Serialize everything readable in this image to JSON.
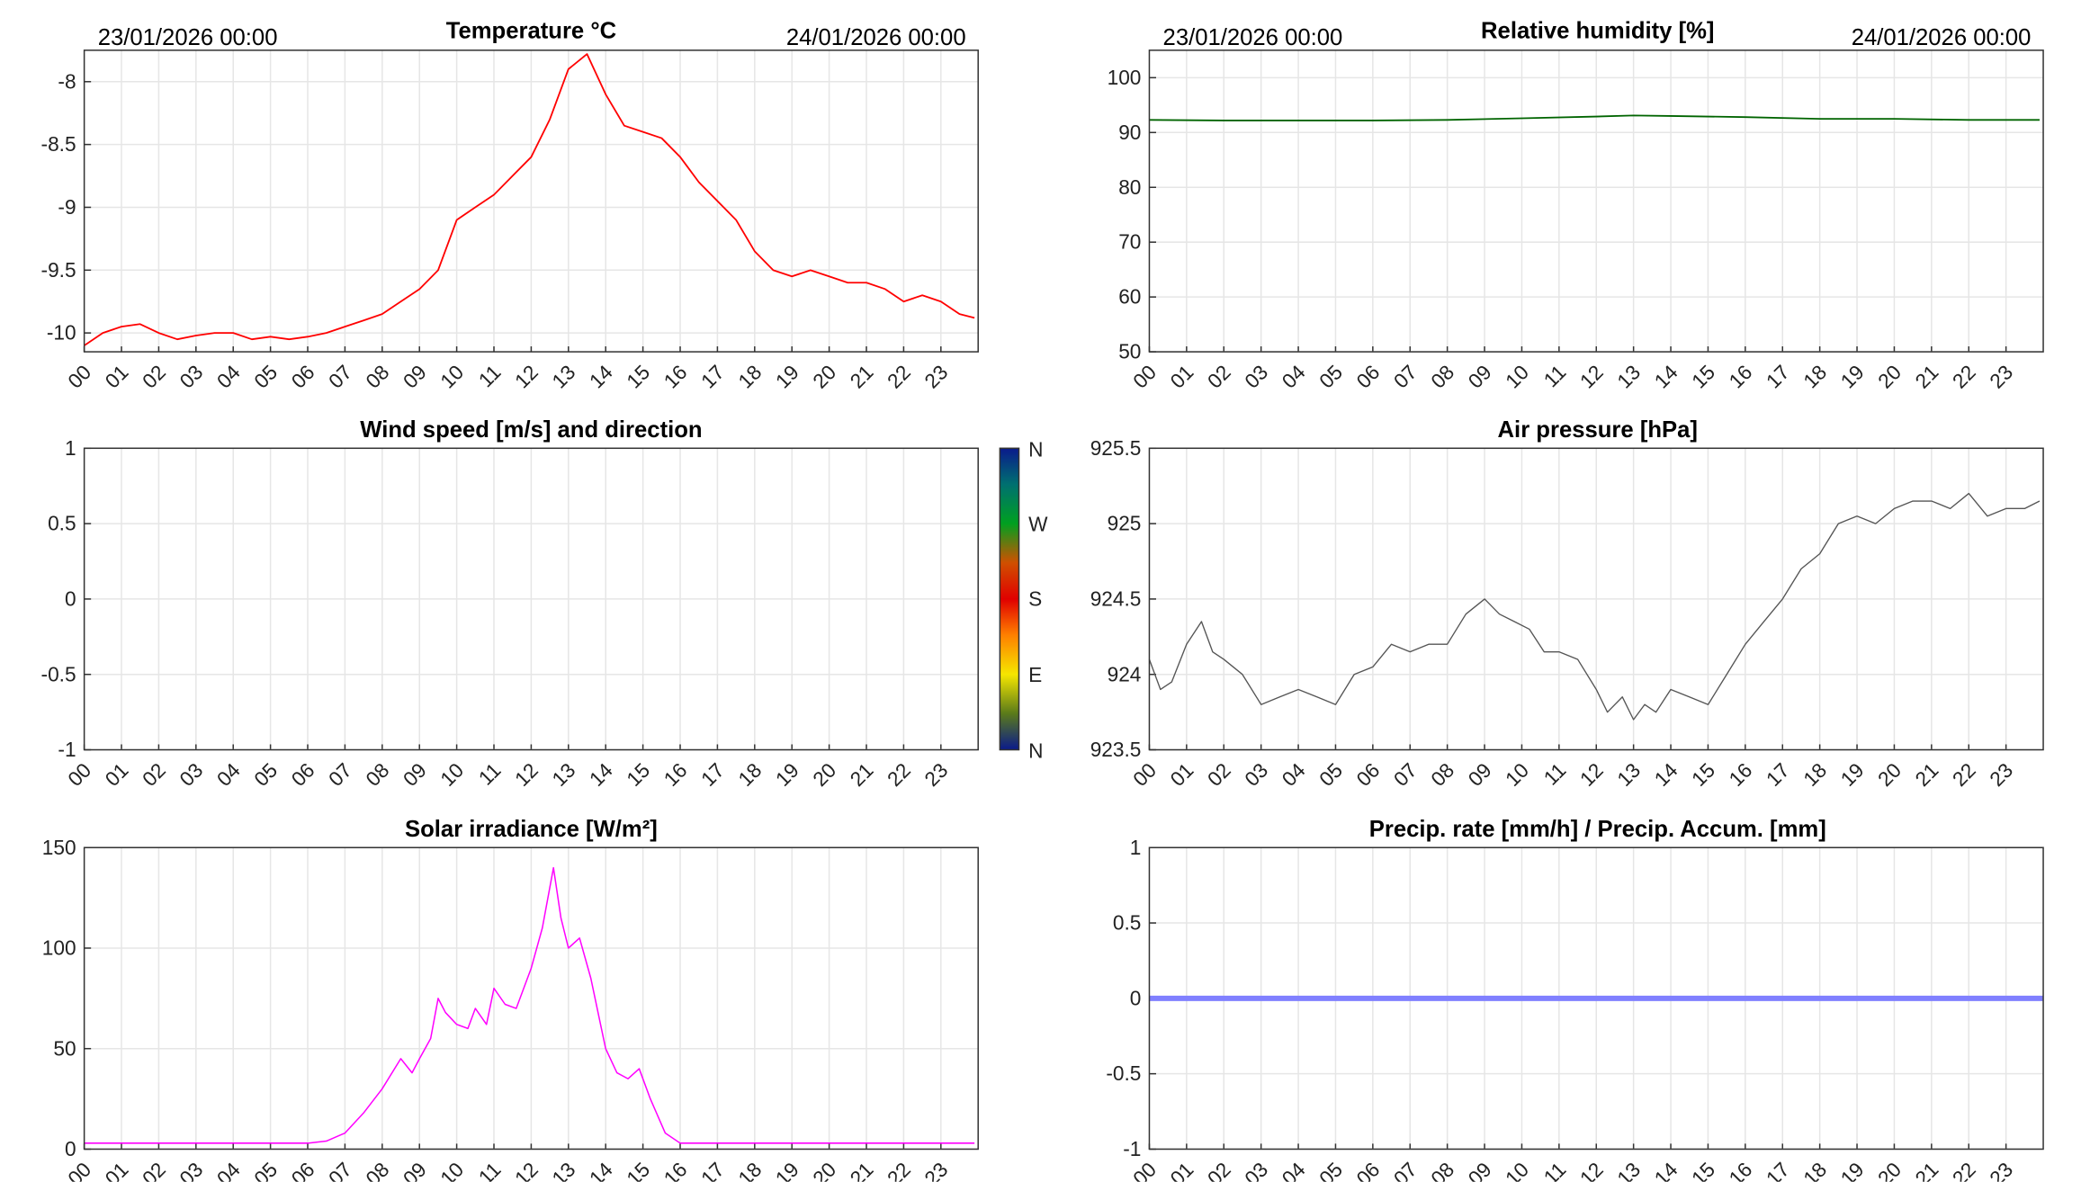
{
  "hours": [
    "00",
    "01",
    "02",
    "03",
    "04",
    "05",
    "06",
    "07",
    "08",
    "09",
    "10",
    "11",
    "12",
    "13",
    "14",
    "15",
    "16",
    "17",
    "18",
    "19",
    "20",
    "21",
    "22",
    "23"
  ],
  "date_start": "23/01/2026 00:00",
  "date_end": "24/01/2026 00:00",
  "colorbar": {
    "labels": [
      "N",
      "W",
      "S",
      "E",
      "N"
    ]
  },
  "colors": {
    "temperature": "#ff0000",
    "humidity": "#006400",
    "pressure": "#555555",
    "solar": "#ff00ff",
    "precip": "#8080ff",
    "grid": "#e6e6e6"
  },
  "chart_data": [
    {
      "id": "temperature",
      "type": "line",
      "title": "Temperature °C",
      "xlim": [
        0,
        24
      ],
      "ylim": [
        -10.15,
        -7.75
      ],
      "yticks": [
        -8,
        -8.5,
        -9,
        -9.5,
        -10
      ],
      "ytick_labels": [
        "-8",
        "-8.5",
        "-9",
        "-9.5",
        "-10"
      ],
      "series": [
        {
          "x": [
            0,
            0.5,
            1,
            1.5,
            2,
            2.5,
            3,
            3.5,
            4,
            4.5,
            5,
            5.5,
            6,
            6.5,
            7,
            7.5,
            8,
            8.5,
            9,
            9.5,
            10,
            10.5,
            11,
            11.5,
            12,
            12.5,
            13,
            13.5,
            14,
            14.5,
            15,
            15.5,
            16,
            16.5,
            17,
            17.5,
            18,
            18.5,
            19,
            19.5,
            20,
            20.5,
            21,
            21.5,
            22,
            22.5,
            23,
            23.5,
            23.9
          ],
          "y": [
            -10.1,
            -10.0,
            -9.95,
            -9.93,
            -10.0,
            -10.05,
            -10.02,
            -10.0,
            -10.0,
            -10.05,
            -10.03,
            -10.05,
            -10.03,
            -10.0,
            -9.95,
            -9.9,
            -9.85,
            -9.75,
            -9.65,
            -9.5,
            -9.1,
            -9.0,
            -8.9,
            -8.75,
            -8.6,
            -8.3,
            -7.9,
            -7.78,
            -8.1,
            -8.35,
            -8.4,
            -8.45,
            -8.6,
            -8.8,
            -8.95,
            -9.1,
            -9.35,
            -9.5,
            -9.55,
            -9.5,
            -9.55,
            -9.6,
            -9.6,
            -9.65,
            -9.75,
            -9.7,
            -9.75,
            -9.85,
            -9.88
          ]
        }
      ]
    },
    {
      "id": "humidity",
      "type": "line",
      "title": "Relative humidity [%]",
      "xlim": [
        0,
        24
      ],
      "ylim": [
        50,
        105
      ],
      "yticks": [
        100,
        90,
        80,
        70,
        60,
        50
      ],
      "ytick_labels": [
        "100",
        "90",
        "80",
        "70",
        "60",
        "50"
      ],
      "series": [
        {
          "x": [
            0,
            2,
            4,
            6,
            8,
            10,
            12,
            13,
            14,
            16,
            18,
            20,
            22,
            23.9
          ],
          "y": [
            92.3,
            92.2,
            92.2,
            92.2,
            92.3,
            92.6,
            92.9,
            93.1,
            93.0,
            92.8,
            92.5,
            92.5,
            92.3,
            92.3
          ]
        }
      ]
    },
    {
      "id": "wind",
      "type": "scatter",
      "title": "Wind speed [m/s] and direction",
      "xlim": [
        0,
        24
      ],
      "ylim": [
        -1,
        1
      ],
      "yticks": [
        1,
        0.5,
        0,
        -0.5,
        -1
      ],
      "ytick_labels": [
        "1",
        "0.5",
        "0",
        "-0.5",
        "-1"
      ],
      "series": []
    },
    {
      "id": "pressure",
      "type": "line",
      "title": "Air pressure [hPa]",
      "xlim": [
        0,
        24
      ],
      "ylim": [
        923.5,
        925.5
      ],
      "yticks": [
        925.5,
        925,
        924.5,
        924,
        923.5
      ],
      "ytick_labels": [
        "925.5",
        "925",
        "924.5",
        "924",
        "923.5"
      ],
      "series": [
        {
          "x": [
            0,
            0.3,
            0.6,
            1,
            1.4,
            1.7,
            2,
            2.5,
            3,
            3.5,
            4,
            4.5,
            5,
            5.5,
            6,
            6.5,
            7,
            7.5,
            8,
            8.5,
            9,
            9.4,
            9.8,
            10.2,
            10.6,
            11,
            11.5,
            12,
            12.3,
            12.7,
            13,
            13.3,
            13.6,
            14,
            14.5,
            15,
            15.5,
            16,
            16.5,
            17,
            17.5,
            18,
            18.5,
            19,
            19.5,
            20,
            20.5,
            21,
            21.5,
            22,
            22.5,
            23,
            23.5,
            23.9
          ],
          "y": [
            924.1,
            923.9,
            923.95,
            924.2,
            924.35,
            924.15,
            924.1,
            924.0,
            923.8,
            923.85,
            923.9,
            923.85,
            923.8,
            924.0,
            924.05,
            924.2,
            924.15,
            924.2,
            924.2,
            924.4,
            924.5,
            924.4,
            924.35,
            924.3,
            924.15,
            924.15,
            924.1,
            923.9,
            923.75,
            923.85,
            923.7,
            923.8,
            923.75,
            923.9,
            923.85,
            923.8,
            924.0,
            924.2,
            924.35,
            924.5,
            924.7,
            924.8,
            925.0,
            925.05,
            925.0,
            925.1,
            925.15,
            925.15,
            925.1,
            925.2,
            925.05,
            925.1,
            925.1,
            925.15
          ]
        }
      ]
    },
    {
      "id": "solar",
      "type": "line",
      "title": "Solar irradiance [W/m²]",
      "xlim": [
        0,
        24
      ],
      "ylim": [
        0,
        150
      ],
      "yticks": [
        150,
        100,
        50,
        0
      ],
      "ytick_labels": [
        "150",
        "100",
        "50",
        "0"
      ],
      "series": [
        {
          "x": [
            0,
            3,
            6,
            6.5,
            7,
            7.5,
            8,
            8.5,
            8.8,
            9,
            9.3,
            9.5,
            9.7,
            10,
            10.3,
            10.5,
            10.8,
            11,
            11.3,
            11.6,
            12,
            12.3,
            12.6,
            12.8,
            13,
            13.3,
            13.6,
            14,
            14.3,
            14.6,
            14.9,
            15.2,
            15.6,
            16,
            18,
            20,
            22,
            23.9
          ],
          "y": [
            3,
            3,
            3,
            4,
            8,
            18,
            30,
            45,
            38,
            45,
            55,
            75,
            68,
            62,
            60,
            70,
            62,
            80,
            72,
            70,
            90,
            110,
            140,
            115,
            100,
            105,
            85,
            50,
            38,
            35,
            40,
            25,
            8,
            3,
            3,
            3,
            3,
            3
          ]
        }
      ]
    },
    {
      "id": "precip",
      "type": "line",
      "title": "Precip. rate [mm/h] / Precip. Accum. [mm]",
      "xlim": [
        0,
        24
      ],
      "ylim": [
        -1,
        1
      ],
      "yticks": [
        1,
        0.5,
        0,
        -0.5,
        -1
      ],
      "ytick_labels": [
        "1",
        "0.5",
        "0",
        "-0.5",
        "-1"
      ],
      "series": [
        {
          "x": [
            0,
            24
          ],
          "y": [
            0,
            0
          ]
        }
      ]
    }
  ]
}
